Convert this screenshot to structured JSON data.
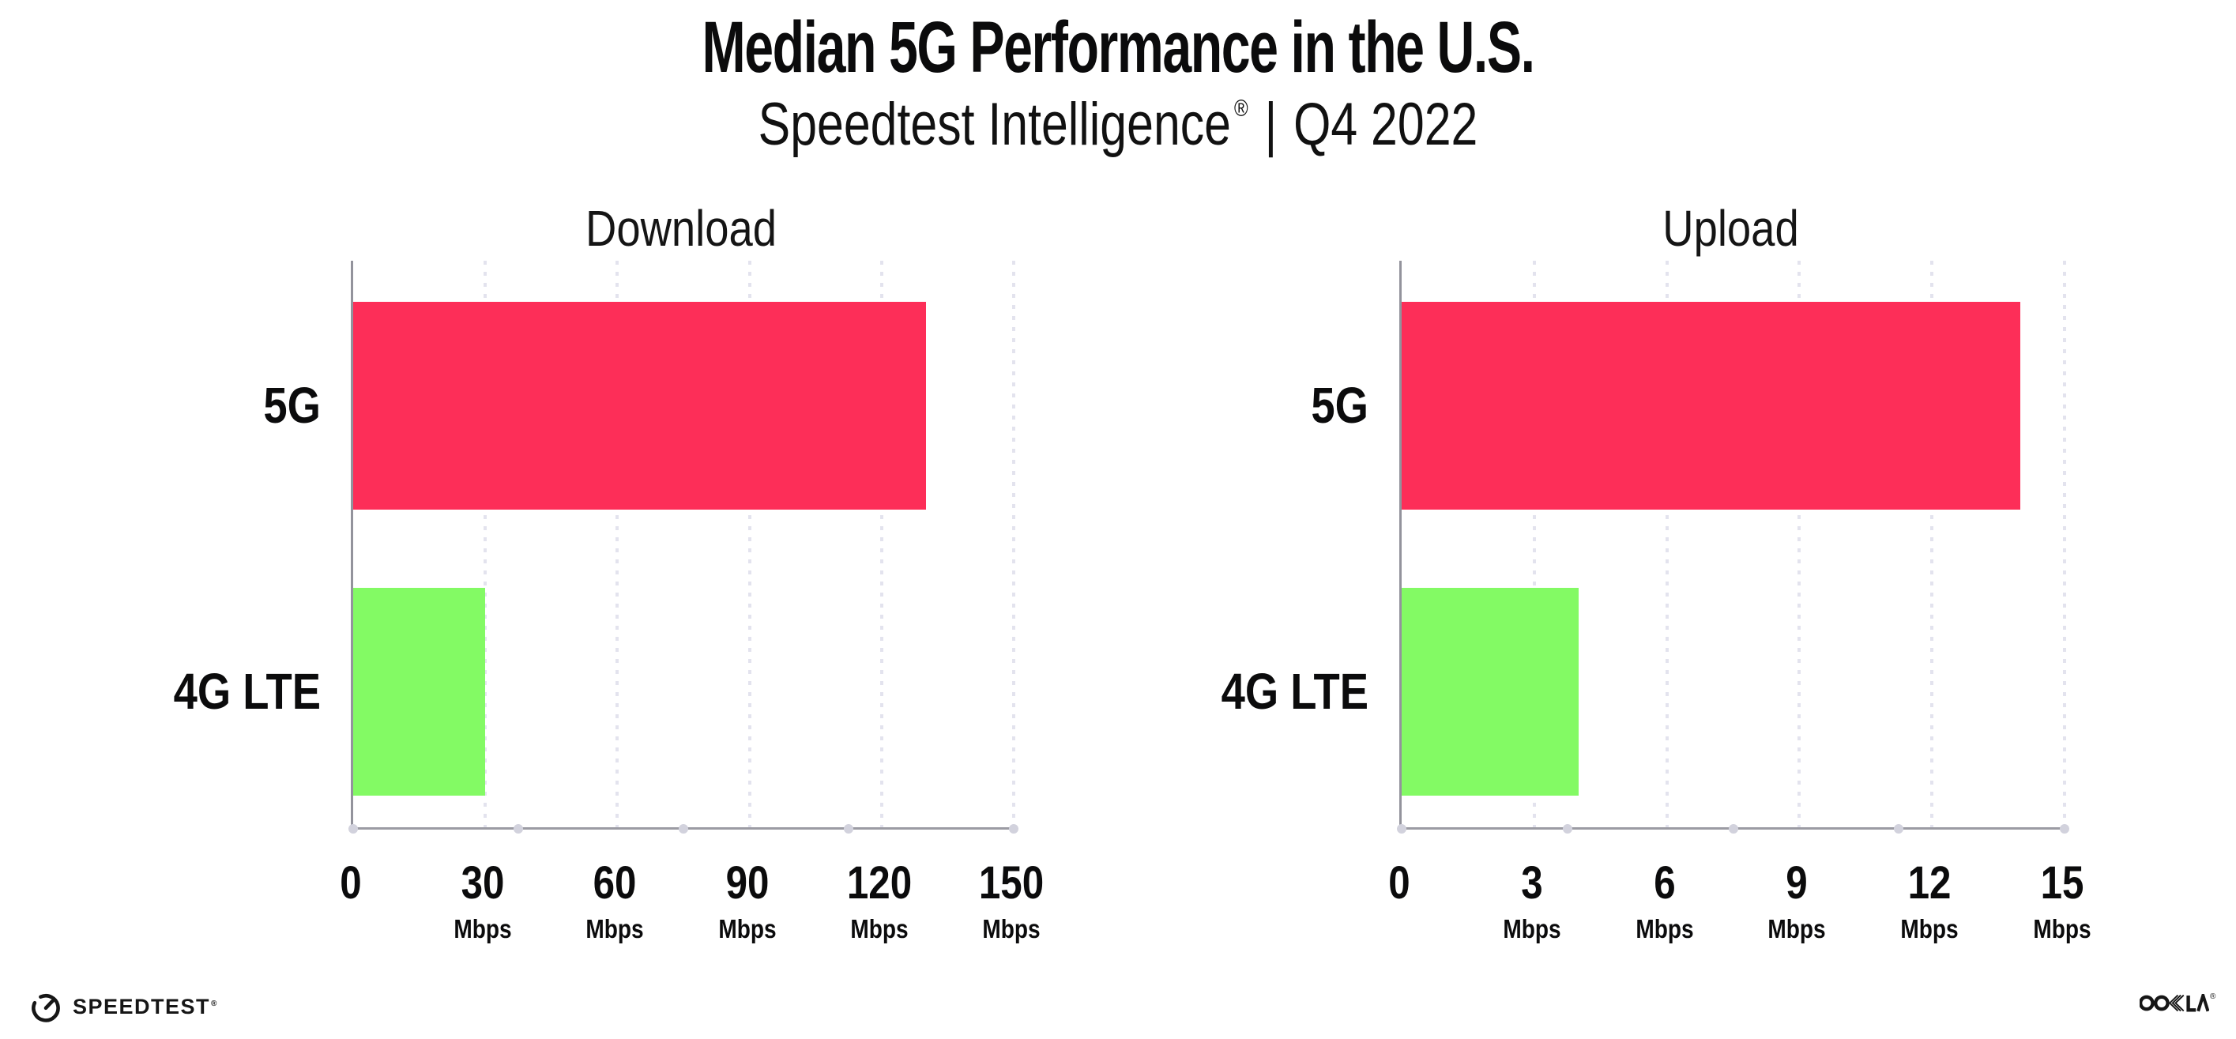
{
  "header": {
    "title": "Median 5G Performance in the U.S.",
    "subtitle_brand": "Speedtest Intelligence",
    "subtitle_reg": "®",
    "subtitle_sep": "|",
    "subtitle_period": "Q4 2022"
  },
  "chart_data": [
    {
      "type": "bar",
      "orientation": "horizontal",
      "title": "Download",
      "categories": [
        "5G",
        "4G LTE"
      ],
      "values": [
        130,
        30
      ],
      "unit_label": "Mbps",
      "xlim": [
        0,
        150
      ],
      "xticks": [
        0,
        30,
        60,
        90,
        120,
        150
      ],
      "bar_colors": [
        "#fd2e58",
        "#83fa64"
      ],
      "grid": "dotted-vertical",
      "legend": "none"
    },
    {
      "type": "bar",
      "orientation": "horizontal",
      "title": "Upload",
      "categories": [
        "5G",
        "4G LTE"
      ],
      "values": [
        14,
        4
      ],
      "unit_label": "Mbps",
      "xlim": [
        0,
        15
      ],
      "xticks": [
        0,
        3,
        6,
        9,
        12,
        15
      ],
      "bar_colors": [
        "#fd2e58",
        "#83fa64"
      ],
      "grid": "dotted-vertical",
      "legend": "none"
    }
  ],
  "footer": {
    "speedtest_label": "SPEEDTEST",
    "speedtest_reg": "®",
    "ookla_label": "OOKLA",
    "ookla_reg": "®",
    "icons": [
      "gauge-icon",
      "ookla-wordmark"
    ]
  },
  "colors": {
    "bar_5g": "#fd2e58",
    "bar_4g_lte": "#83fa64",
    "axis_line": "#9b9ba3",
    "gridline_dots": "#e3e3ee",
    "axis_quarter_dots": "#d2d2dd",
    "text": "#0b0b0c",
    "background": "#ffffff"
  }
}
